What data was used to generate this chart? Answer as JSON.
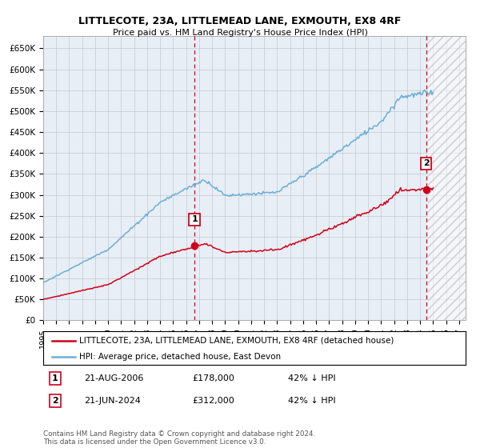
{
  "title": "LITTLECOTE, 23A, LITTLEMEAD LANE, EXMOUTH, EX8 4RF",
  "subtitle": "Price paid vs. HM Land Registry's House Price Index (HPI)",
  "xlim_start": 1995.0,
  "xlim_end": 2027.5,
  "ylim_min": 0,
  "ylim_max": 680000,
  "yticks": [
    0,
    50000,
    100000,
    150000,
    200000,
    250000,
    300000,
    350000,
    400000,
    450000,
    500000,
    550000,
    600000,
    650000
  ],
  "ytick_labels": [
    "£0",
    "£50K",
    "£100K",
    "£150K",
    "£200K",
    "£250K",
    "£300K",
    "£350K",
    "£400K",
    "£450K",
    "£500K",
    "£550K",
    "£600K",
    "£650K"
  ],
  "xticks": [
    1995,
    1996,
    1997,
    1998,
    1999,
    2000,
    2001,
    2002,
    2003,
    2004,
    2005,
    2006,
    2007,
    2008,
    2009,
    2010,
    2011,
    2012,
    2013,
    2014,
    2015,
    2016,
    2017,
    2018,
    2019,
    2020,
    2021,
    2022,
    2023,
    2024,
    2025,
    2026,
    2027
  ],
  "hpi_color": "#6baed6",
  "price_color": "#d0021b",
  "vline_color": "#d0021b",
  "bg_color": "#ffffff",
  "chart_bg": "#e8eef5",
  "grid_color": "#c0c8d0",
  "hatch_start": 2024.58,
  "transaction1_x": 2006.64,
  "transaction1_y": 178000,
  "transaction2_x": 2024.47,
  "transaction2_y": 312000,
  "legend_line1": "LITTLECOTE, 23A, LITTLEMEAD LANE, EXMOUTH, EX8 4RF (detached house)",
  "legend_line2": "HPI: Average price, detached house, East Devon",
  "info1_num": "1",
  "info1_date": "21-AUG-2006",
  "info1_price": "£178,000",
  "info1_hpi": "42% ↓ HPI",
  "info2_num": "2",
  "info2_date": "21-JUN-2024",
  "info2_price": "£312,000",
  "info2_hpi": "42% ↓ HPI",
  "footer": "Contains HM Land Registry data © Crown copyright and database right 2024.\nThis data is licensed under the Open Government Licence v3.0."
}
